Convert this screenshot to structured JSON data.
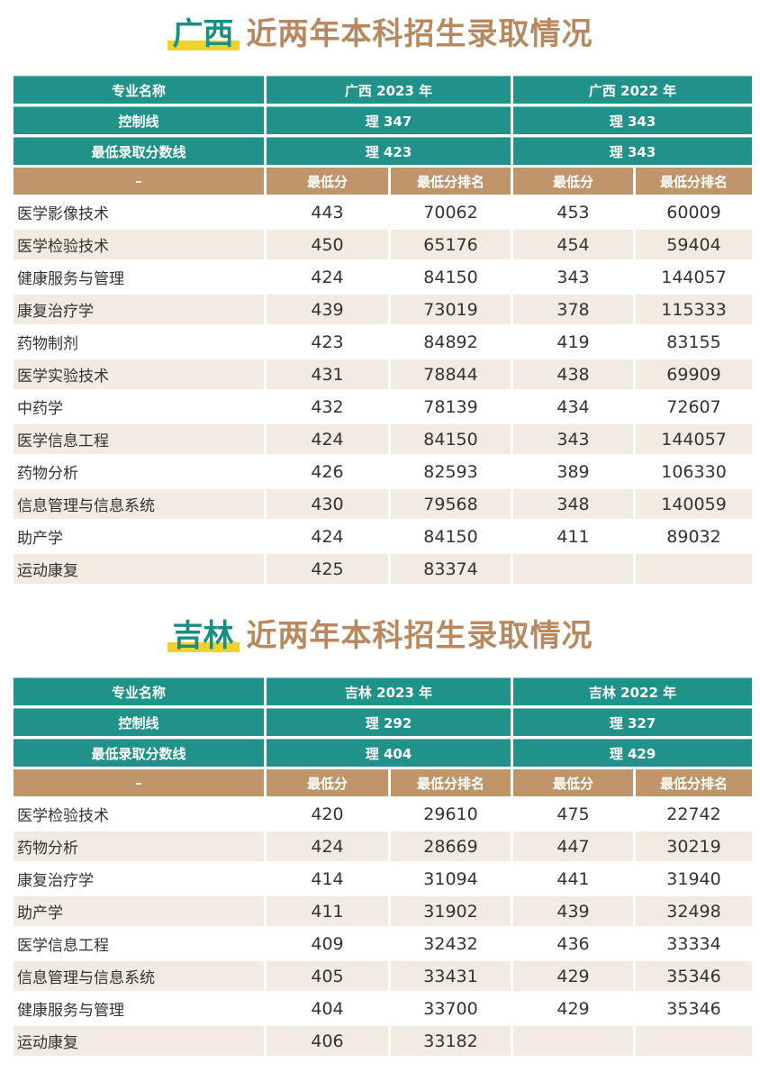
{
  "guangxi": {
    "title_province": "广西",
    "title_rest": "近两年本科招生录取情况",
    "header": {
      "label": "专业名称",
      "year_a": "广西 2023 年",
      "year_b": "广西 2022 年",
      "control_label": "控制线",
      "control_a": "理 347",
      "control_b": "理 343",
      "minline_label": "最低录取分数线",
      "minline_a": "理 423",
      "minline_b": "理 343",
      "sub_dash": "–",
      "sub_min": "最低分",
      "sub_rank": "最低分排名"
    },
    "rows": [
      {
        "name": "医学影像技术",
        "s23": "443",
        "r23": "70062",
        "s22": "453",
        "r22": "60009"
      },
      {
        "name": "医学检验技术",
        "s23": "450",
        "r23": "65176",
        "s22": "454",
        "r22": "59404"
      },
      {
        "name": "健康服务与管理",
        "s23": "424",
        "r23": "84150",
        "s22": "343",
        "r22": "144057"
      },
      {
        "name": "康复治疗学",
        "s23": "439",
        "r23": "73019",
        "s22": "378",
        "r22": "115333"
      },
      {
        "name": "药物制剂",
        "s23": "423",
        "r23": "84892",
        "s22": "419",
        "r22": "83155"
      },
      {
        "name": "医学实验技术",
        "s23": "431",
        "r23": "78844",
        "s22": "438",
        "r22": "69909"
      },
      {
        "name": "中药学",
        "s23": "432",
        "r23": "78139",
        "s22": "434",
        "r22": "72607"
      },
      {
        "name": "医学信息工程",
        "s23": "424",
        "r23": "84150",
        "s22": "343",
        "r22": "144057"
      },
      {
        "name": "药物分析",
        "s23": "426",
        "r23": "82593",
        "s22": "389",
        "r22": "106330"
      },
      {
        "name": "信息管理与信息系统",
        "s23": "430",
        "r23": "79568",
        "s22": "348",
        "r22": "140059"
      },
      {
        "name": "助产学",
        "s23": "424",
        "r23": "84150",
        "s22": "411",
        "r22": "89032"
      },
      {
        "name": "运动康复",
        "s23": "425",
        "r23": "83374",
        "s22": "",
        "r22": ""
      }
    ]
  },
  "jilin": {
    "title_province": "吉林",
    "title_rest": "近两年本科招生录取情况",
    "header": {
      "label": "专业名称",
      "year_a": "吉林 2023 年",
      "year_b": "吉林 2022 年",
      "control_label": "控制线",
      "control_a": "理 292",
      "control_b": "理 327",
      "minline_label": "最低录取分数线",
      "minline_a": "理 404",
      "minline_b": "理 429",
      "sub_dash": "–",
      "sub_min": "最低分",
      "sub_rank": "最低分排名"
    },
    "rows": [
      {
        "name": "医学检验技术",
        "s23": "420",
        "r23": "29610",
        "s22": "475",
        "r22": "22742"
      },
      {
        "name": "药物分析",
        "s23": "424",
        "r23": "28669",
        "s22": "447",
        "r22": "30219"
      },
      {
        "name": "康复治疗学",
        "s23": "414",
        "r23": "31094",
        "s22": "441",
        "r22": "31940"
      },
      {
        "name": "助产学",
        "s23": "411",
        "r23": "31902",
        "s22": "439",
        "r22": "32498"
      },
      {
        "name": "医学信息工程",
        "s23": "409",
        "r23": "32432",
        "s22": "436",
        "r22": "33334"
      },
      {
        "name": "信息管理与信息系统",
        "s23": "405",
        "r23": "33431",
        "s22": "429",
        "r22": "35346"
      },
      {
        "name": "健康服务与管理",
        "s23": "404",
        "r23": "33700",
        "s22": "429",
        "r22": "35346"
      },
      {
        "name": "运动康复",
        "s23": "406",
        "r23": "33182",
        "s22": "",
        "r22": ""
      }
    ]
  }
}
